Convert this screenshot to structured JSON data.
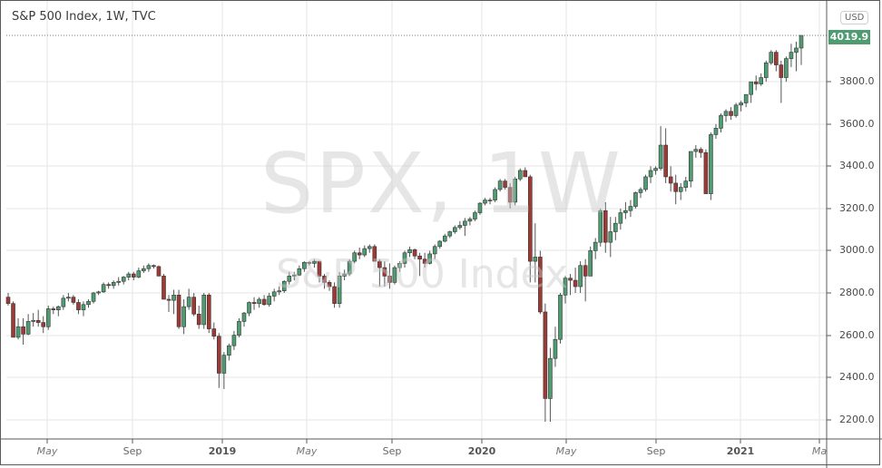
{
  "header": {
    "title": "S&P 500 Index, 1W, TVC",
    "currency_badge": "USD",
    "last_price_label": "4019.9"
  },
  "watermark": {
    "symbol_line": "SPX, 1W",
    "name_line": "S&P 500 Index"
  },
  "colors": {
    "up_fill": "#4f9c73",
    "down_fill": "#9e3a35",
    "wick": "#555555",
    "grid": "#e6e6e6",
    "last_price_bg": "#4f9c73",
    "axis_border": "#5a5a5a"
  },
  "y_axis": {
    "labels": [
      "3800.0",
      "3600.0",
      "3400.0",
      "3200.0",
      "3000.0",
      "2800.0",
      "2600.0",
      "2400.0",
      "2200.0"
    ]
  },
  "x_axis": {
    "labels": [
      {
        "text": "May",
        "kind": "month"
      },
      {
        "text": "Sep",
        "kind": "sep"
      },
      {
        "text": "2019",
        "kind": "year"
      },
      {
        "text": "May",
        "kind": "month"
      },
      {
        "text": "Sep",
        "kind": "sep"
      },
      {
        "text": "2020",
        "kind": "year"
      },
      {
        "text": "May",
        "kind": "month"
      },
      {
        "text": "Sep",
        "kind": "sep"
      },
      {
        "text": "2021",
        "kind": "year"
      },
      {
        "text": "Ma",
        "kind": "month"
      }
    ]
  },
  "chart_data": {
    "type": "candlestick",
    "title": "S&P 500 Index, 1W, TVC",
    "symbol": "SPX",
    "interval": "1W",
    "currency": "USD",
    "last_price": 4019.9,
    "ylim": [
      2150,
      4100
    ],
    "y_ticks": [
      2200,
      2400,
      2600,
      2800,
      3000,
      3200,
      3400,
      3600,
      3800
    ],
    "x_ticks": [
      "May",
      "Sep",
      "2019",
      "May",
      "Sep",
      "2020",
      "May",
      "Sep",
      "2021",
      "Ma"
    ],
    "grid": true,
    "candles_ohlc": [
      [
        2780,
        2800,
        2740,
        2750
      ],
      [
        2750,
        2760,
        2590,
        2590
      ],
      [
        2590,
        2680,
        2580,
        2640
      ],
      [
        2640,
        2680,
        2555,
        2605
      ],
      [
        2605,
        2700,
        2600,
        2665
      ],
      [
        2665,
        2705,
        2640,
        2670
      ],
      [
        2670,
        2720,
        2640,
        2660
      ],
      [
        2660,
        2690,
        2610,
        2640
      ],
      [
        2640,
        2740,
        2625,
        2725
      ],
      [
        2725,
        2735,
        2700,
        2720
      ],
      [
        2720,
        2740,
        2690,
        2735
      ],
      [
        2735,
        2790,
        2720,
        2775
      ],
      [
        2775,
        2800,
        2760,
        2780
      ],
      [
        2780,
        2790,
        2745,
        2755
      ],
      [
        2755,
        2770,
        2700,
        2720
      ],
      [
        2720,
        2760,
        2690,
        2745
      ],
      [
        2745,
        2770,
        2730,
        2760
      ],
      [
        2760,
        2805,
        2750,
        2800
      ],
      [
        2800,
        2810,
        2790,
        2805
      ],
      [
        2805,
        2850,
        2800,
        2840
      ],
      [
        2840,
        2850,
        2820,
        2835
      ],
      [
        2835,
        2860,
        2820,
        2850
      ],
      [
        2850,
        2875,
        2835,
        2855
      ],
      [
        2855,
        2880,
        2840,
        2875
      ],
      [
        2875,
        2900,
        2860,
        2890
      ],
      [
        2890,
        2900,
        2860,
        2875
      ],
      [
        2875,
        2920,
        2870,
        2905
      ],
      [
        2905,
        2930,
        2895,
        2915
      ],
      [
        2915,
        2940,
        2900,
        2930
      ],
      [
        2930,
        2935,
        2915,
        2925
      ],
      [
        2925,
        2930,
        2880,
        2880
      ],
      [
        2880,
        2890,
        2770,
        2770
      ],
      [
        2770,
        2790,
        2710,
        2765
      ],
      [
        2765,
        2815,
        2700,
        2790
      ],
      [
        2790,
        2815,
        2630,
        2640
      ],
      [
        2640,
        2770,
        2605,
        2735
      ],
      [
        2735,
        2820,
        2720,
        2780
      ],
      [
        2780,
        2800,
        2690,
        2700
      ],
      [
        2700,
        2740,
        2630,
        2650
      ],
      [
        2650,
        2800,
        2630,
        2790
      ],
      [
        2790,
        2800,
        2610,
        2630
      ],
      [
        2630,
        2660,
        2580,
        2595
      ],
      [
        2595,
        2610,
        2350,
        2420
      ],
      [
        2420,
        2520,
        2345,
        2505
      ],
      [
        2505,
        2560,
        2480,
        2550
      ],
      [
        2550,
        2620,
        2530,
        2600
      ],
      [
        2600,
        2680,
        2590,
        2665
      ],
      [
        2665,
        2710,
        2640,
        2705
      ],
      [
        2705,
        2760,
        2690,
        2755
      ],
      [
        2755,
        2780,
        2720,
        2750
      ],
      [
        2750,
        2780,
        2730,
        2770
      ],
      [
        2770,
        2790,
        2740,
        2745
      ],
      [
        2745,
        2800,
        2735,
        2785
      ],
      [
        2785,
        2820,
        2760,
        2805
      ],
      [
        2805,
        2830,
        2790,
        2810
      ],
      [
        2810,
        2860,
        2800,
        2855
      ],
      [
        2855,
        2900,
        2840,
        2880
      ],
      [
        2880,
        2900,
        2860,
        2885
      ],
      [
        2885,
        2930,
        2880,
        2915
      ],
      [
        2915,
        2950,
        2900,
        2945
      ],
      [
        2945,
        2950,
        2930,
        2940
      ],
      [
        2940,
        2960,
        2920,
        2950
      ],
      [
        2950,
        2950,
        2850,
        2880
      ],
      [
        2880,
        2890,
        2820,
        2850
      ],
      [
        2850,
        2860,
        2810,
        2830
      ],
      [
        2830,
        2850,
        2730,
        2750
      ],
      [
        2750,
        2900,
        2730,
        2880
      ],
      [
        2880,
        2910,
        2860,
        2890
      ],
      [
        2890,
        2960,
        2880,
        2950
      ],
      [
        2950,
        3000,
        2940,
        2990
      ],
      [
        2990,
        3015,
        2960,
        2980
      ],
      [
        2980,
        3025,
        2970,
        3010
      ],
      [
        3010,
        3030,
        2990,
        3020
      ],
      [
        3020,
        3030,
        2950,
        2950
      ],
      [
        2950,
        2960,
        2830,
        2920
      ],
      [
        2920,
        2950,
        2830,
        2880
      ],
      [
        2880,
        2940,
        2820,
        2850
      ],
      [
        2850,
        2930,
        2840,
        2920
      ],
      [
        2920,
        2950,
        2900,
        2940
      ],
      [
        2940,
        3000,
        2920,
        2990
      ],
      [
        2990,
        3020,
        2970,
        3005
      ],
      [
        3005,
        3010,
        2960,
        2975
      ],
      [
        2975,
        2990,
        2880,
        2960
      ],
      [
        2960,
        2990,
        2920,
        2940
      ],
      [
        2940,
        3000,
        2935,
        2985
      ],
      [
        2985,
        3030,
        2960,
        3020
      ],
      [
        3020,
        3050,
        3010,
        3045
      ],
      [
        3045,
        3080,
        3040,
        3070
      ],
      [
        3070,
        3095,
        3060,
        3090
      ],
      [
        3090,
        3120,
        3080,
        3110
      ],
      [
        3110,
        3140,
        3100,
        3120
      ],
      [
        3120,
        3155,
        3070,
        3140
      ],
      [
        3140,
        3160,
        3120,
        3150
      ],
      [
        3150,
        3190,
        3140,
        3180
      ],
      [
        3180,
        3230,
        3170,
        3225
      ],
      [
        3225,
        3250,
        3215,
        3240
      ],
      [
        3240,
        3250,
        3220,
        3240
      ],
      [
        3240,
        3300,
        3230,
        3290
      ],
      [
        3290,
        3340,
        3280,
        3330
      ],
      [
        3330,
        3340,
        3290,
        3300
      ],
      [
        3300,
        3320,
        3200,
        3230
      ],
      [
        3230,
        3350,
        3215,
        3340
      ],
      [
        3340,
        3390,
        3330,
        3380
      ],
      [
        3380,
        3395,
        3350,
        3350
      ],
      [
        3350,
        3360,
        2850,
        2950
      ],
      [
        2950,
        3130,
        2850,
        2970
      ],
      [
        2970,
        3000,
        2700,
        2710
      ],
      [
        2710,
        2750,
        2190,
        2300
      ],
      [
        2300,
        2540,
        2190,
        2490
      ],
      [
        2490,
        2640,
        2450,
        2580
      ],
      [
        2580,
        2800,
        2560,
        2790
      ],
      [
        2790,
        2880,
        2750,
        2870
      ],
      [
        2870,
        2890,
        2790,
        2860
      ],
      [
        2860,
        2920,
        2800,
        2830
      ],
      [
        2830,
        2950,
        2800,
        2930
      ],
      [
        2930,
        2960,
        2760,
        2880
      ],
      [
        2880,
        3020,
        2880,
        3000
      ],
      [
        3000,
        3060,
        2960,
        3040
      ],
      [
        3040,
        3200,
        3020,
        3190
      ],
      [
        3190,
        3230,
        2990,
        3040
      ],
      [
        3040,
        3160,
        2970,
        3090
      ],
      [
        3090,
        3160,
        3050,
        3130
      ],
      [
        3130,
        3200,
        3100,
        3180
      ],
      [
        3180,
        3230,
        3150,
        3190
      ],
      [
        3190,
        3240,
        3160,
        3210
      ],
      [
        3210,
        3280,
        3200,
        3275
      ],
      [
        3275,
        3300,
        3250,
        3290
      ],
      [
        3290,
        3360,
        3280,
        3350
      ],
      [
        3350,
        3400,
        3320,
        3380
      ],
      [
        3380,
        3400,
        3360,
        3390
      ],
      [
        3390,
        3590,
        3380,
        3500
      ],
      [
        3500,
        3580,
        3320,
        3350
      ],
      [
        3350,
        3400,
        3280,
        3320
      ],
      [
        3320,
        3360,
        3220,
        3280
      ],
      [
        3280,
        3320,
        3240,
        3300
      ],
      [
        3300,
        3350,
        3280,
        3330
      ],
      [
        3330,
        3430,
        3300,
        3470
      ],
      [
        3470,
        3500,
        3440,
        3480
      ],
      [
        3480,
        3490,
        3440,
        3465
      ],
      [
        3465,
        3480,
        3270,
        3270
      ],
      [
        3270,
        3560,
        3240,
        3550
      ],
      [
        3550,
        3600,
        3530,
        3580
      ],
      [
        3580,
        3650,
        3560,
        3640
      ],
      [
        3640,
        3670,
        3610,
        3660
      ],
      [
        3660,
        3680,
        3620,
        3640
      ],
      [
        3640,
        3700,
        3630,
        3690
      ],
      [
        3690,
        3710,
        3660,
        3700
      ],
      [
        3700,
        3740,
        3680,
        3740
      ],
      [
        3740,
        3800,
        3700,
        3800
      ],
      [
        3800,
        3830,
        3760,
        3790
      ],
      [
        3790,
        3840,
        3780,
        3820
      ],
      [
        3820,
        3900,
        3800,
        3890
      ],
      [
        3890,
        3950,
        3880,
        3940
      ],
      [
        3940,
        3950,
        3850,
        3880
      ],
      [
        3880,
        3900,
        3700,
        3820
      ],
      [
        3820,
        3920,
        3800,
        3910
      ],
      [
        3910,
        3980,
        3870,
        3940
      ],
      [
        3940,
        3990,
        3850,
        3960
      ],
      [
        3960,
        4020,
        3880,
        4019.9
      ]
    ]
  }
}
